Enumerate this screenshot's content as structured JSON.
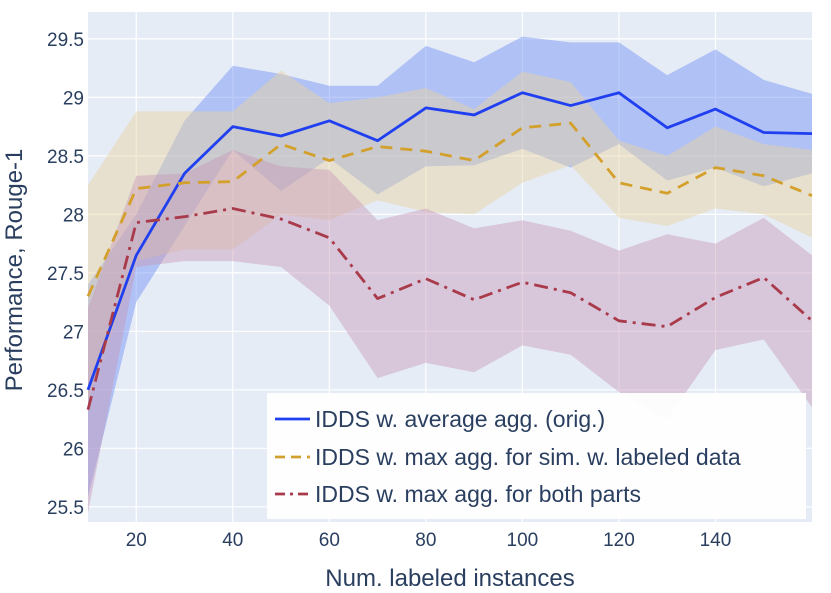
{
  "chart_data": {
    "type": "line",
    "title": "",
    "xlabel": "Num. labeled instances",
    "ylabel": "Performance, Rouge-1",
    "xlim": [
      10,
      160
    ],
    "ylim": [
      25.37,
      29.73
    ],
    "xticks": [
      20,
      40,
      60,
      80,
      100,
      120,
      140
    ],
    "yticks": [
      25.5,
      26,
      26.5,
      27,
      27.5,
      28,
      28.5,
      29,
      29.5
    ],
    "x": [
      10,
      20,
      30,
      40,
      50,
      60,
      70,
      80,
      90,
      100,
      110,
      120,
      130,
      140,
      150,
      160
    ],
    "legend_position": "bottom-right",
    "series": [
      {
        "name": "IDDS w. average agg. (orig.)",
        "color": "#1f3ff0",
        "band_color": "#6f8ff5",
        "dash": "solid",
        "values": [
          26.5,
          27.65,
          28.35,
          28.75,
          28.67,
          28.8,
          28.63,
          28.91,
          28.85,
          29.04,
          28.93,
          29.04,
          28.74,
          28.9,
          28.7,
          28.69
        ],
        "upper": [
          27.4,
          28.0,
          28.8,
          29.27,
          29.2,
          29.1,
          29.1,
          29.44,
          29.3,
          29.52,
          29.47,
          29.47,
          29.19,
          29.41,
          29.15,
          29.03
        ],
        "lower": [
          25.58,
          27.25,
          27.9,
          28.55,
          28.2,
          28.48,
          28.17,
          28.41,
          28.42,
          28.56,
          28.4,
          28.6,
          28.29,
          28.4,
          28.24,
          28.35
        ]
      },
      {
        "name": "IDDS w. max agg. for sim. w. labeled data",
        "color": "#d4a02c",
        "band_color": "#e8d3a0",
        "dash": "dash",
        "values": [
          27.3,
          28.22,
          28.27,
          28.28,
          28.6,
          28.46,
          28.58,
          28.54,
          28.46,
          28.74,
          28.78,
          28.27,
          28.18,
          28.4,
          28.33,
          28.16
        ],
        "upper": [
          28.25,
          28.88,
          28.88,
          28.88,
          29.23,
          28.95,
          29.0,
          29.08,
          28.9,
          29.22,
          29.13,
          28.63,
          28.5,
          28.75,
          28.6,
          28.55
        ],
        "lower": [
          26.4,
          27.6,
          27.7,
          27.7,
          28.0,
          27.95,
          28.12,
          28.02,
          28.0,
          28.27,
          28.42,
          27.97,
          27.9,
          28.05,
          28.0,
          27.8
        ]
      },
      {
        "name": "IDDS w. max agg. for both parts",
        "color": "#a83a4a",
        "band_color": "#c79ab8",
        "dash": "dashdot",
        "values": [
          26.33,
          27.93,
          27.98,
          28.05,
          27.96,
          27.8,
          27.28,
          27.45,
          27.27,
          27.42,
          27.33,
          27.09,
          27.04,
          27.29,
          27.46,
          27.09
        ],
        "upper": [
          27.2,
          28.33,
          28.35,
          28.55,
          28.41,
          28.38,
          27.95,
          28.05,
          27.88,
          27.95,
          27.86,
          27.69,
          27.83,
          27.75,
          27.97,
          27.65
        ],
        "lower": [
          25.45,
          27.55,
          27.6,
          27.6,
          27.55,
          27.22,
          26.6,
          26.73,
          26.65,
          26.88,
          26.8,
          26.48,
          26.25,
          26.84,
          26.93,
          26.35
        ]
      }
    ]
  }
}
